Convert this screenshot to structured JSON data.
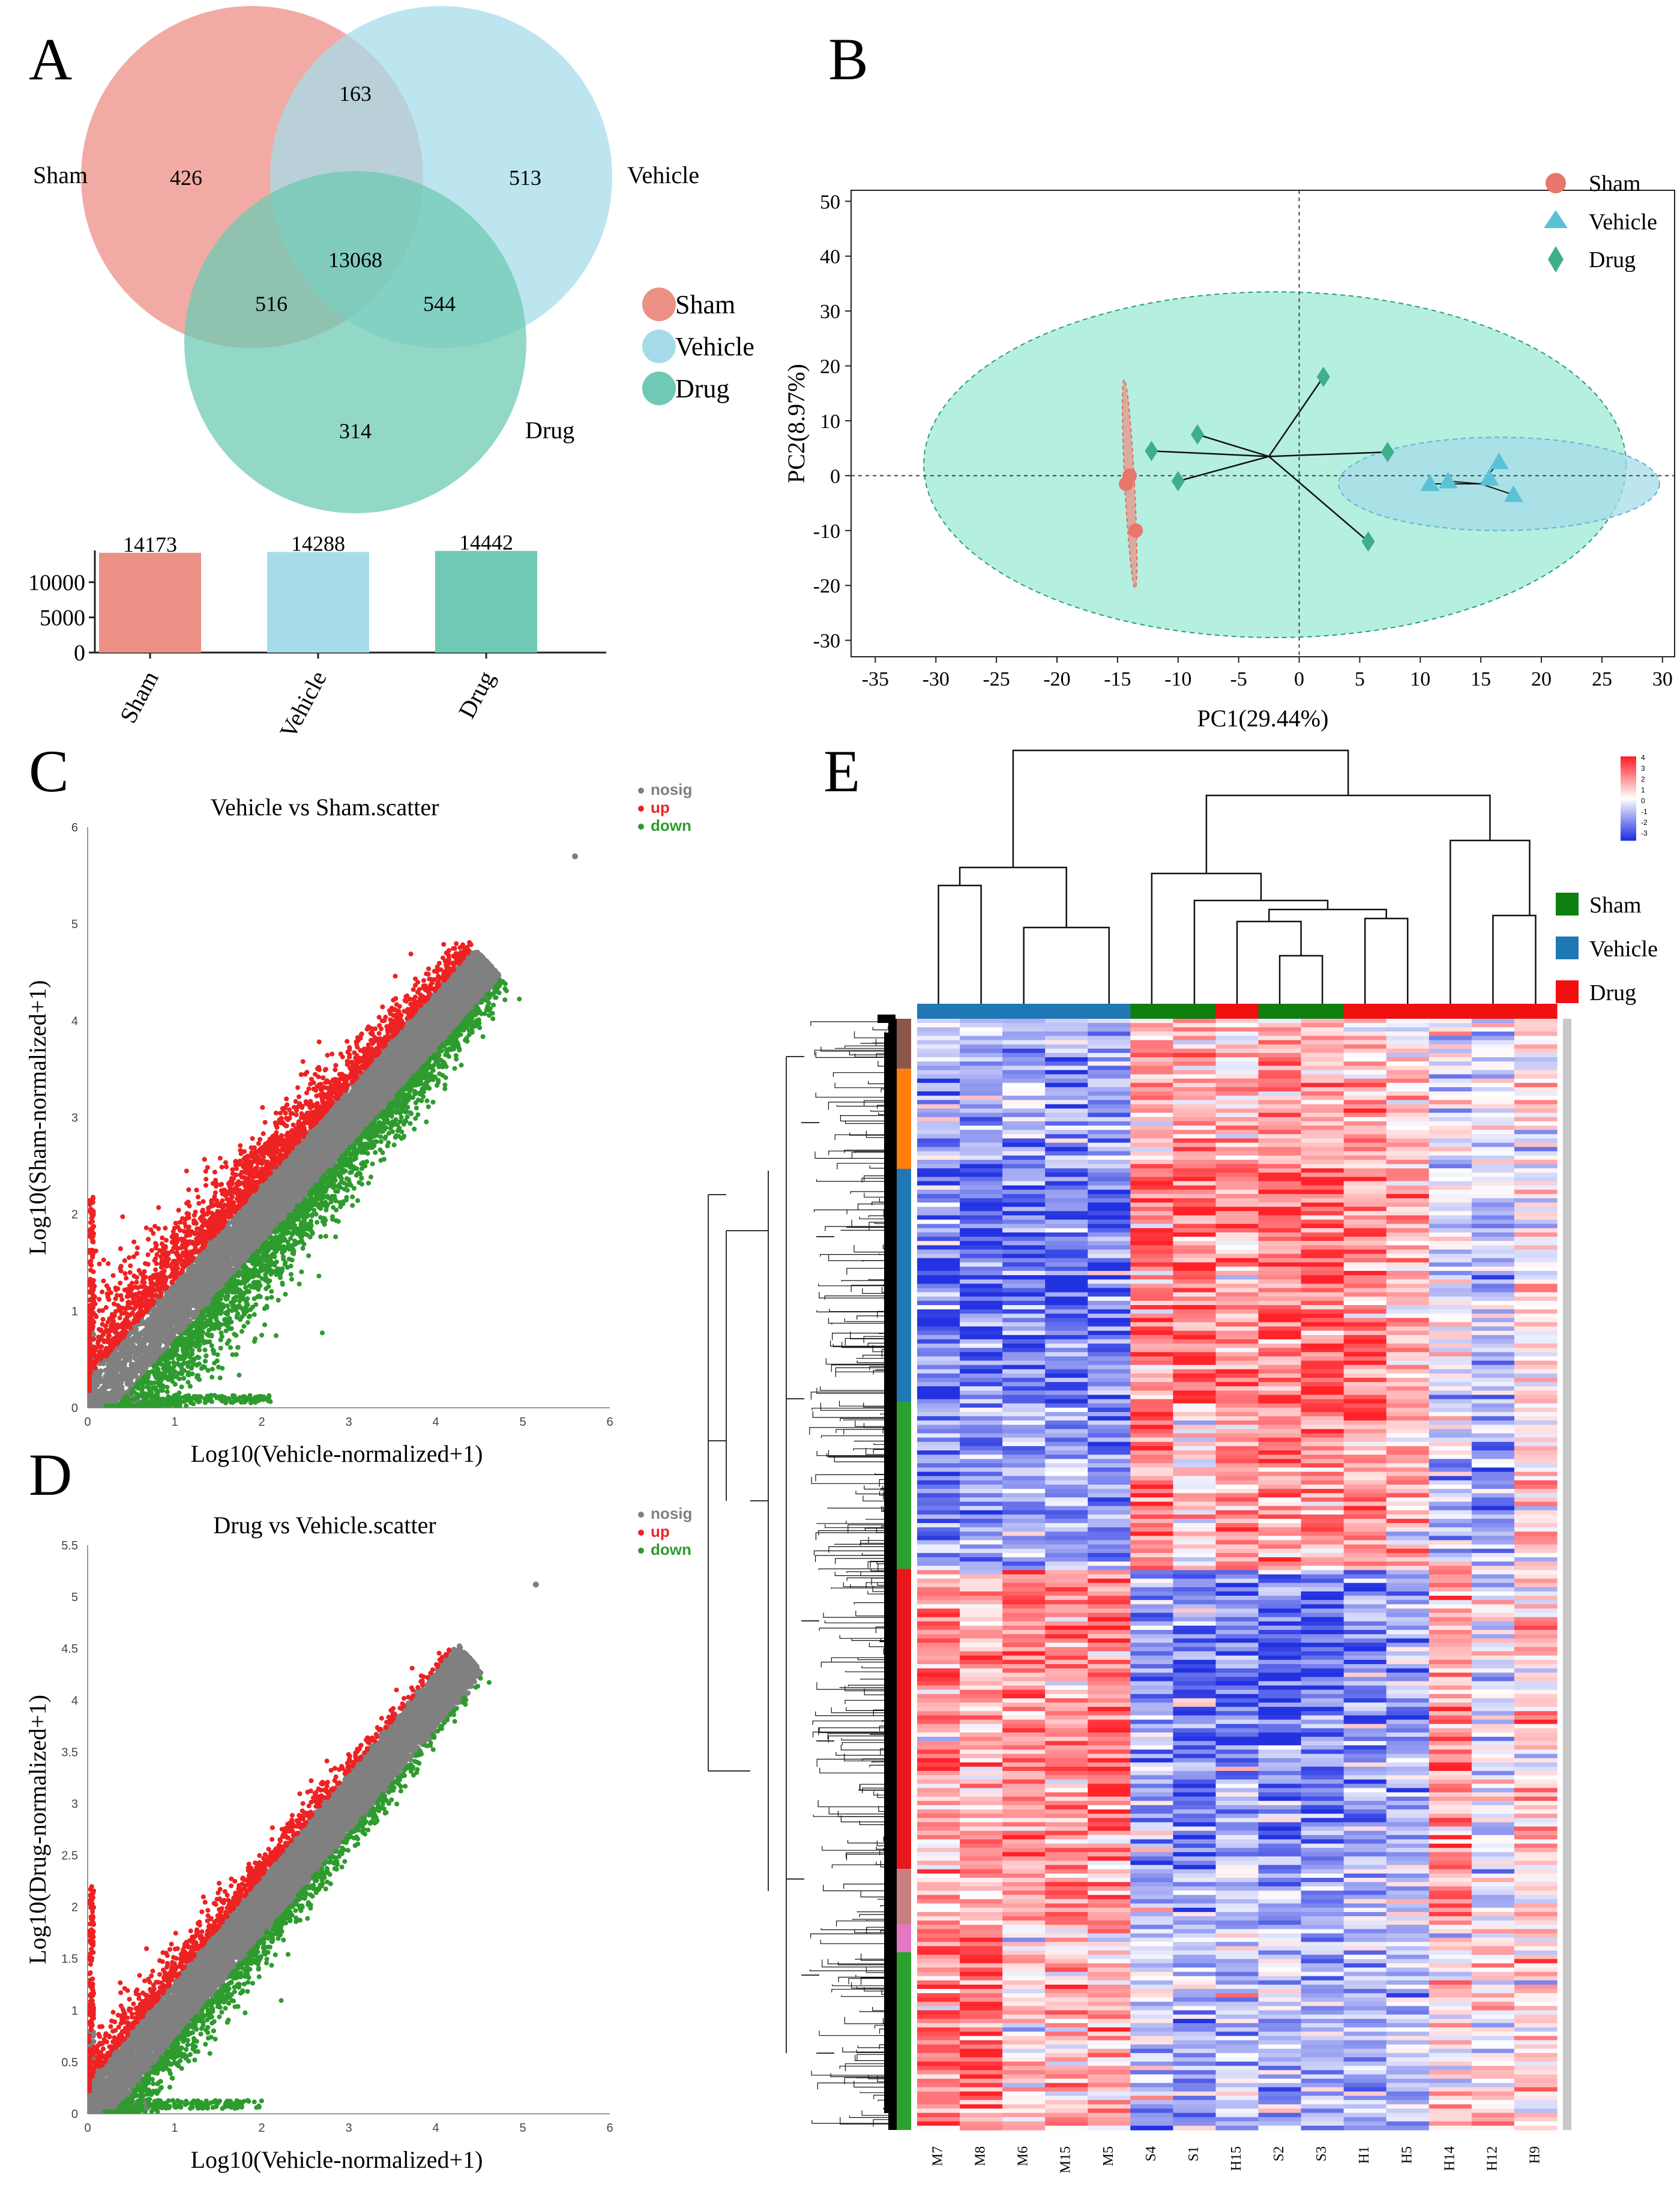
{
  "panels": {
    "A": "A",
    "B": "B",
    "C": "C",
    "D": "D",
    "E": "E"
  },
  "colors": {
    "sham": "#ec8f85",
    "vehicle": "#a6dcea",
    "drug": "#6fc9b4",
    "pca_sham": "#e8766a",
    "pca_vehicle": "#5bc2d6",
    "pca_drug": "#3fae8a",
    "nosig": "#808080",
    "up": "#ee2222",
    "down": "#2e9b2e",
    "heat_high": "#e8212b",
    "heat_low": "#2233e0",
    "ann_sham": "#0f7f0f",
    "ann_vehicle": "#1f78b4",
    "ann_drug": "#f01010"
  },
  "chart_data": [
    {
      "id": "A-venn",
      "type": "venn",
      "sets": [
        "Sham",
        "Vehicle",
        "Drug"
      ],
      "regions": {
        "sham_only": "426",
        "vehicle_only": "513",
        "drug_only": "314",
        "sham_vehicle": "163",
        "sham_drug": "516",
        "vehicle_drug": "544",
        "all": "13068"
      },
      "legend": [
        "Sham",
        "Vehicle",
        "Drug"
      ]
    },
    {
      "id": "A-bar",
      "type": "bar",
      "categories": [
        "Sham",
        "Vehicle",
        "Drug"
      ],
      "values": [
        14173,
        14288,
        14442
      ],
      "ylim": [
        0,
        14500
      ],
      "yticks": [
        0,
        5000,
        10000
      ]
    },
    {
      "id": "B-pca",
      "type": "scatter",
      "xlabel": "PC1(29.44%)",
      "ylabel": "PC2(8.97%)",
      "xlim": [
        -37,
        31
      ],
      "ylim": [
        -33,
        52
      ],
      "xticks": [
        -35,
        -30,
        -25,
        -20,
        -15,
        -10,
        -5,
        0,
        5,
        10,
        15,
        20,
        25,
        30
      ],
      "yticks": [
        -30,
        -20,
        -10,
        0,
        10,
        20,
        30,
        40,
        50
      ],
      "center": [
        -2.5,
        3.5
      ],
      "legend": [
        "Sham",
        "Vehicle",
        "Drug"
      ],
      "series": [
        {
          "name": "Sham",
          "points": [
            [
              -14.3,
              -1.5
            ],
            [
              -14,
              0
            ],
            [
              -13.5,
              -10
            ]
          ]
        },
        {
          "name": "Vehicle",
          "points": [
            [
              10.8,
              -1.5
            ],
            [
              12.3,
              -1
            ],
            [
              16.5,
              2.5
            ],
            [
              15.7,
              -0.5
            ],
            [
              17.7,
              -3.5
            ]
          ]
        },
        {
          "name": "Drug",
          "points": [
            [
              2,
              18
            ],
            [
              -12.2,
              4.5
            ],
            [
              -8.4,
              7.5
            ],
            [
              -10,
              -1
            ],
            [
              7.3,
              4.3
            ],
            [
              5.7,
              -12
            ]
          ]
        }
      ],
      "vehicle_center": [
        15,
        -1.5
      ]
    },
    {
      "id": "C-scatter",
      "type": "scatter",
      "title": "Vehicle vs Sham.scatter",
      "xlabel": "Log10(Vehicle-normalized+1)",
      "ylabel": "Log10(Sham-normalized+1)",
      "xlim": [
        0,
        6
      ],
      "ylim": [
        0,
        6
      ],
      "xticks": [
        0,
        1,
        2,
        3,
        4,
        5,
        6
      ],
      "yticks": [
        0,
        1,
        2,
        3,
        4,
        5,
        6
      ],
      "legend": [
        "nosig",
        "up",
        "down"
      ]
    },
    {
      "id": "D-scatter",
      "type": "scatter",
      "title": "Drug vs Vehicle.scatter",
      "xlabel": "Log10(Vehicle-normalized+1)",
      "ylabel": "Log10(Drug-normalized+1)",
      "xlim": [
        0,
        6
      ],
      "ylim": [
        0,
        5.5
      ],
      "xticks": [
        0,
        1,
        2,
        3,
        4,
        5,
        6
      ],
      "yticks": [
        "0",
        "0.5",
        "1",
        "1.5",
        "2",
        "2.5",
        "3",
        "3.5",
        "4",
        "4.5",
        "5",
        "5.5"
      ],
      "legend": [
        "nosig",
        "up",
        "down"
      ]
    },
    {
      "id": "E-heatmap",
      "type": "heatmap",
      "columns": [
        "M7",
        "M8",
        "M6",
        "M15",
        "M5",
        "S4",
        "S1",
        "H15",
        "S2",
        "S3",
        "H1",
        "H5",
        "H14",
        "H12",
        "H9"
      ],
      "column_groups": [
        "Vehicle",
        "Vehicle",
        "Vehicle",
        "Vehicle",
        "Vehicle",
        "Sham",
        "Sham",
        "Drug",
        "Sham",
        "Sham",
        "Drug",
        "Drug",
        "Drug",
        "Drug",
        "Drug"
      ],
      "colorbar_ticks": [
        "4",
        "3",
        "2",
        "1",
        "0",
        "-1",
        "-2",
        "-3"
      ],
      "legend": [
        "Sham",
        "Vehicle",
        "Drug"
      ]
    }
  ]
}
